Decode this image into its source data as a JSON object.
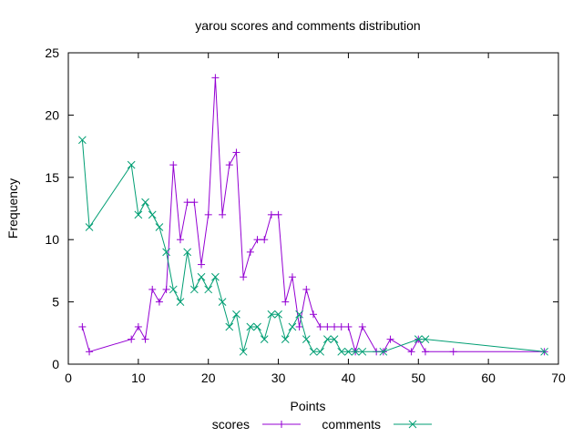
{
  "chart_data": {
    "type": "line",
    "title": "yarou scores and comments distribution",
    "xlabel": "Points",
    "ylabel": "Frequency",
    "xlim": [
      0,
      70
    ],
    "ylim": [
      0,
      25
    ],
    "x_ticks": [
      0,
      10,
      20,
      30,
      40,
      50,
      60,
      70
    ],
    "y_ticks": [
      0,
      5,
      10,
      15,
      20,
      25
    ],
    "grid": false,
    "legend_position": "bottom-center",
    "series": [
      {
        "name": "scores",
        "color": "#9400d3",
        "marker": "plus",
        "x": [
          2,
          3,
          9,
          10,
          11,
          12,
          13,
          14,
          15,
          16,
          17,
          18,
          19,
          20,
          21,
          22,
          23,
          24,
          25,
          26,
          27,
          28,
          29,
          30,
          31,
          32,
          33,
          34,
          35,
          36,
          37,
          38,
          39,
          40,
          41,
          42,
          44,
          45,
          46,
          49,
          50,
          51,
          55,
          68
        ],
        "y": [
          3,
          1,
          2,
          3,
          2,
          6,
          5,
          6,
          16,
          10,
          13,
          13,
          8,
          12,
          23,
          12,
          16,
          17,
          7,
          9,
          10,
          10,
          12,
          12,
          5,
          7,
          3,
          6,
          4,
          3,
          3,
          3,
          3,
          3,
          1,
          3,
          1,
          1,
          2,
          1,
          2,
          1,
          1,
          1
        ]
      },
      {
        "name": "comments",
        "color": "#009e73",
        "marker": "cross",
        "x": [
          2,
          3,
          9,
          10,
          11,
          12,
          13,
          14,
          15,
          16,
          17,
          18,
          19,
          20,
          21,
          22,
          23,
          24,
          25,
          26,
          27,
          28,
          29,
          30,
          31,
          32,
          33,
          34,
          35,
          36,
          37,
          38,
          39,
          40,
          41,
          42,
          45,
          50,
          51,
          68
        ],
        "y": [
          18,
          11,
          16,
          12,
          13,
          12,
          11,
          9,
          6,
          5,
          9,
          6,
          7,
          6,
          7,
          5,
          3,
          4,
          1,
          3,
          3,
          2,
          4,
          4,
          2,
          3,
          4,
          2,
          1,
          1,
          2,
          2,
          1,
          1,
          1,
          1,
          1,
          2,
          2,
          1
        ]
      }
    ]
  }
}
